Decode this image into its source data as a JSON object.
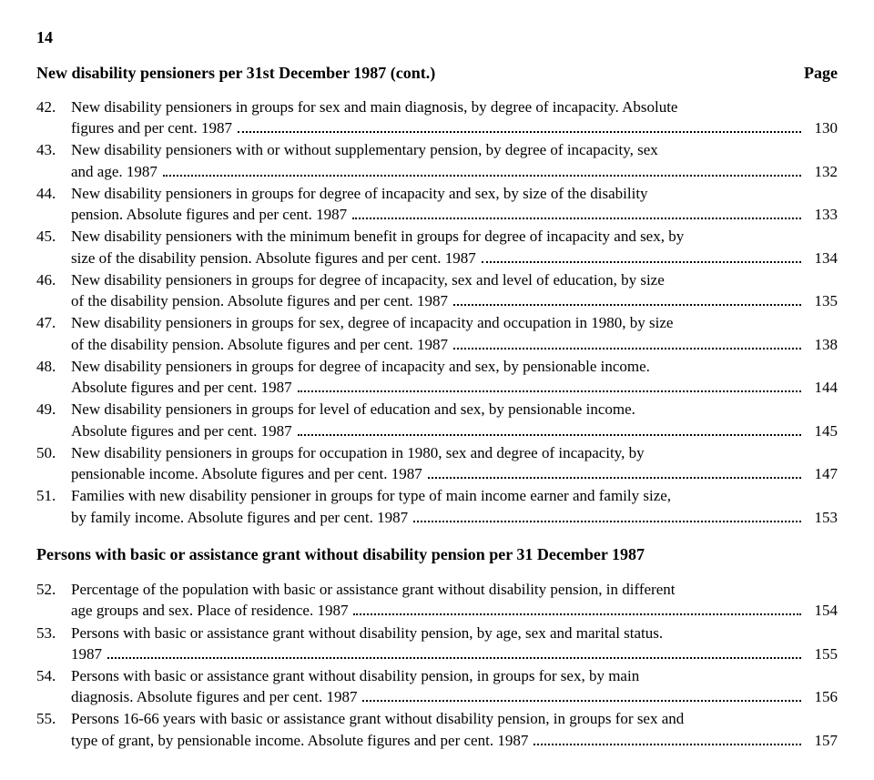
{
  "page_number": "14",
  "section1": {
    "title": "New disability pensioners per 31st December 1987 (cont.)",
    "page_label": "Page"
  },
  "section2": {
    "title": "Persons with basic or assistance grant without disability pension per 31 December 1987"
  },
  "entries1": [
    {
      "num": "42.",
      "lines": [
        "New disability pensioners in groups for sex and main diagnosis, by degree of incapacity. Absolute"
      ],
      "tail": "figures and per cent. 1987",
      "page": "130"
    },
    {
      "num": "43.",
      "lines": [
        "New disability pensioners with or without supplementary pension, by degree of incapacity, sex"
      ],
      "tail": "and age. 1987",
      "page": "132"
    },
    {
      "num": "44.",
      "lines": [
        "New disability pensioners in groups for degree of incapacity and sex, by size of the disability"
      ],
      "tail": "pension. Absolute figures and per cent. 1987",
      "page": "133"
    },
    {
      "num": "45.",
      "lines": [
        "New disability pensioners with the minimum benefit in groups for degree of incapacity and sex, by"
      ],
      "tail": "size of the disability pension. Absolute figures and per cent. 1987",
      "page": "134"
    },
    {
      "num": "46.",
      "lines": [
        "New disability pensioners in groups for degree of incapacity, sex and level of education, by size"
      ],
      "tail": "of the disability pension. Absolute figures and per cent. 1987",
      "page": "135"
    },
    {
      "num": "47.",
      "lines": [
        "New disability pensioners in groups for sex, degree of incapacity and occupation in 1980, by size"
      ],
      "tail": "of the disability pension. Absolute figures and per cent. 1987",
      "page": "138"
    },
    {
      "num": "48.",
      "lines": [
        "New disability pensioners in groups for degree of incapacity and sex, by pensionable income."
      ],
      "tail": "Absolute figures and per cent. 1987",
      "page": "144"
    },
    {
      "num": "49.",
      "lines": [
        "New disability pensioners in groups for level of education and sex, by pensionable income."
      ],
      "tail": "Absolute figures and per cent. 1987",
      "page": "145"
    },
    {
      "num": "50.",
      "lines": [
        "New disability pensioners in groups for occupation in 1980, sex and degree of incapacity, by"
      ],
      "tail": "pensionable income. Absolute figures and per cent. 1987",
      "page": "147"
    },
    {
      "num": "51.",
      "lines": [
        "Families with new disability pensioner in groups for type of main income earner and family size,"
      ],
      "tail": "by family income. Absolute figures and per cent. 1987",
      "page": "153"
    }
  ],
  "entries2": [
    {
      "num": "52.",
      "lines": [
        "Percentage of the population with basic or assistance grant without disability pension, in different"
      ],
      "tail": "age groups and sex. Place of residence. 1987",
      "page": "154"
    },
    {
      "num": "53.",
      "lines": [
        "Persons with basic or assistance grant without disability pension, by age, sex and marital status."
      ],
      "tail": "1987",
      "page": "155"
    },
    {
      "num": "54.",
      "lines": [
        "Persons with basic or assistance grant without disability pension, in groups for sex, by main"
      ],
      "tail": "diagnosis. Absolute figures and per cent. 1987",
      "page": "156"
    },
    {
      "num": "55.",
      "lines": [
        "Persons 16-66 years with basic or assistance grant without disability pension, in groups for sex and"
      ],
      "tail": "type of grant, by pensionable income. Absolute figures and per cent. 1987",
      "page": "157"
    }
  ]
}
